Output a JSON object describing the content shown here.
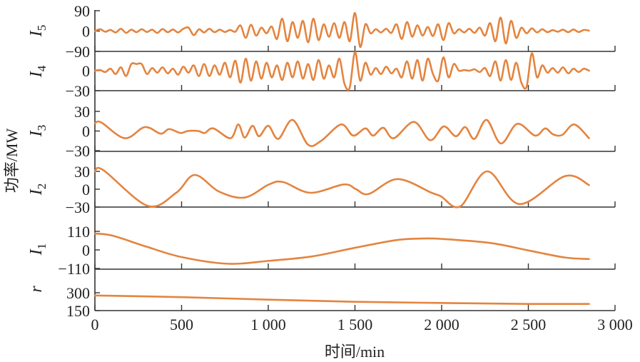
{
  "chart_data": {
    "type": "line",
    "title": "",
    "xlabel": "时间/min",
    "ylabel": "功率/MW",
    "xlim": [
      0,
      3000
    ],
    "x_ticks": [
      0,
      500,
      1000,
      1500,
      2000,
      2500,
      3000
    ],
    "x_tick_labels": [
      "0",
      "500",
      "1 000",
      "1 500",
      "2 000",
      "2 500",
      "3 000"
    ],
    "line_color": "#e4843f",
    "grid": false,
    "panels": [
      {
        "name": "I5",
        "label_main": "I",
        "label_sub": "5",
        "y_ticks": [
          90,
          0,
          -90
        ],
        "y_tick_labels": [
          "90",
          "0",
          "−90"
        ],
        "x_start": 0,
        "x_step": 30,
        "y": [
          0,
          8,
          -3,
          5,
          -6,
          10,
          -8,
          6,
          -5,
          8,
          -4,
          6,
          -8,
          9,
          -5,
          7,
          -6,
          10,
          15,
          -18,
          8,
          -6,
          10,
          -5,
          6,
          -4,
          5,
          -3,
          25,
          -30,
          28,
          -20,
          15,
          -10,
          20,
          -35,
          55,
          -45,
          40,
          -30,
          45,
          -50,
          55,
          -40,
          30,
          -25,
          35,
          -30,
          40,
          -45,
          80,
          -70,
          30,
          -10,
          8,
          -6,
          10,
          -8,
          30,
          -35,
          40,
          -25,
          25,
          -20,
          18,
          -22,
          30,
          -40,
          35,
          -10,
          8,
          -6,
          10,
          -8,
          15,
          -20,
          35,
          -45,
          60,
          -55,
          45,
          -30,
          15,
          -10,
          12,
          -6,
          8,
          -5,
          4,
          -3,
          6,
          -5,
          7,
          -4,
          5,
          2
        ]
      },
      {
        "name": "I4",
        "label_main": "I",
        "label_sub": "4",
        "y_ticks": [
          0,
          -30
        ],
        "y_tick_labels": [
          "0",
          "−30"
        ],
        "x_start": 0,
        "x_step": 30,
        "y": [
          0,
          1,
          -2,
          3,
          -5,
          5,
          -8,
          10,
          10,
          10,
          -5,
          4,
          -3,
          5,
          -4,
          3,
          -6,
          6,
          -3,
          8,
          -8,
          10,
          -8,
          8,
          -6,
          12,
          -10,
          15,
          -18,
          18,
          -15,
          14,
          -12,
          12,
          -10,
          8,
          -14,
          12,
          -10,
          14,
          -12,
          10,
          -14,
          16,
          -12,
          8,
          -10,
          18,
          -20,
          -25,
          28,
          -15,
          12,
          -6,
          4,
          -5,
          6,
          -4,
          3,
          -10,
          14,
          -12,
          16,
          -15,
          18,
          -5,
          -15,
          20,
          -10,
          10,
          0,
          1,
          0,
          2,
          -2,
          4,
          -8,
          14,
          -15,
          16,
          -14,
          12,
          -18,
          -24,
          26,
          -10,
          8,
          -3,
          4,
          -3,
          5,
          -4,
          3,
          -2,
          3,
          0
        ]
      },
      {
        "name": "I3",
        "label_main": "I",
        "label_sub": "3",
        "y_ticks": [
          30,
          0,
          -30
        ],
        "y_tick_labels": [
          "30",
          "0",
          "−30"
        ],
        "x": [
          0,
          37,
          173,
          288,
          379,
          428,
          494,
          535,
          597,
          633,
          683,
          782,
          827,
          864,
          909,
          947,
          1000,
          1058,
          1140,
          1230,
          1305,
          1420,
          1490,
          1560,
          1605,
          1663,
          1724,
          1840,
          1934,
          2012,
          2082,
          2136,
          2189,
          2259,
          2342,
          2436,
          2539,
          2597,
          2642,
          2695,
          2765,
          2850
        ],
        "y": [
          12,
          13,
          -11,
          6,
          -4,
          3,
          -3,
          0,
          0,
          -3,
          4,
          -11,
          10,
          -10,
          8,
          -8,
          8,
          -12,
          17,
          -21,
          -15,
          10,
          -7,
          4,
          -7,
          5,
          -11,
          14,
          -14,
          7,
          -8,
          6,
          -12,
          17,
          -19,
          11,
          -7,
          4,
          -5,
          -6,
          10,
          -11
        ]
      },
      {
        "name": "I2",
        "label_main": "I",
        "label_sub": "2",
        "y_ticks": [
          30,
          0,
          -30
        ],
        "y_tick_labels": [
          "30",
          "0",
          "−30"
        ],
        "x": [
          0,
          49,
          305,
          469,
          576,
          716,
          864,
          1004,
          1086,
          1243,
          1436,
          1506,
          1580,
          1745,
          1942,
          1996,
          2107,
          2263,
          2449,
          2712,
          2850
        ],
        "y": [
          30,
          32,
          -28,
          -6,
          24,
          -4,
          -14,
          8,
          12,
          -6,
          8,
          0,
          -8,
          17,
          -6,
          -12,
          -29,
          30,
          -25,
          22,
          7
        ]
      },
      {
        "name": "I1",
        "label_main": "I",
        "label_sub": "1",
        "y_ticks": [
          110,
          0,
          -110
        ],
        "y_tick_labels": [
          "110",
          "0",
          "−110"
        ],
        "x": [
          0,
          103,
          298,
          502,
          765,
          1002,
          1251,
          1502,
          1737,
          1874,
          2002,
          2282,
          2504,
          2710,
          2850
        ],
        "y": [
          97,
          84,
          19,
          -43,
          -82,
          -65,
          -39,
          13,
          58,
          67,
          65,
          41,
          -4,
          -45,
          -54
        ]
      },
      {
        "name": "r",
        "label_main": "r",
        "label_sub": "",
        "y_ticks": [
          300,
          150
        ],
        "y_tick_labels": [
          "300",
          "150"
        ],
        "x": [
          0,
          500,
          1000,
          1500,
          2000,
          2500,
          2850
        ],
        "y": [
          277,
          263,
          242,
          224,
          214,
          206,
          206
        ]
      }
    ]
  }
}
